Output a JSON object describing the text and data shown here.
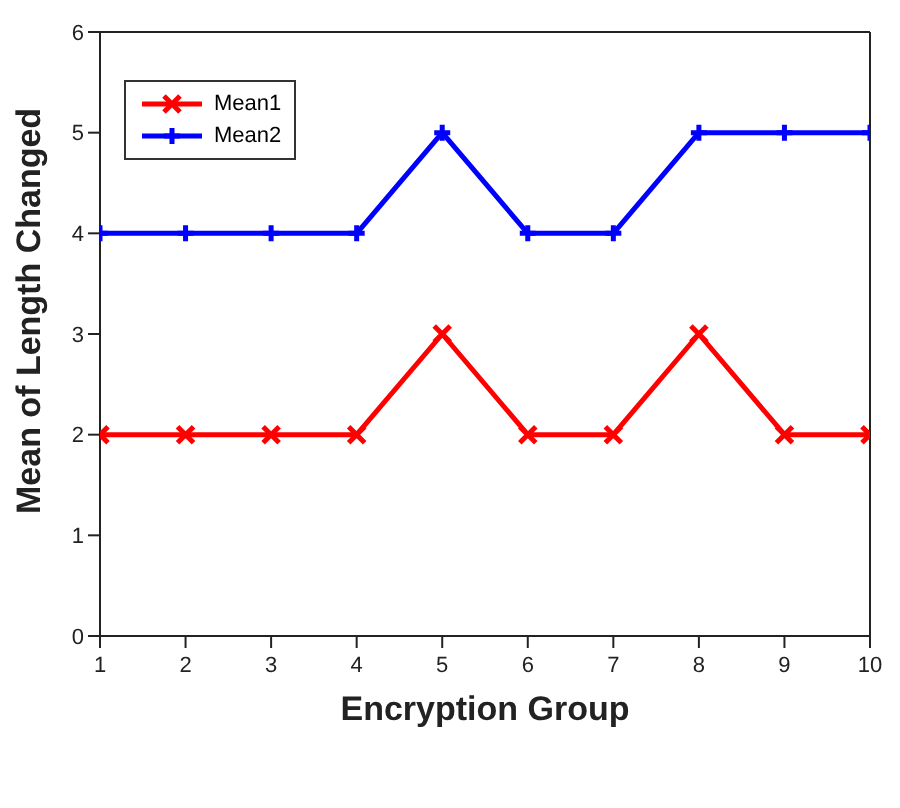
{
  "chart_data": {
    "type": "line",
    "xlabel": "Encryption Group",
    "ylabel": "Mean of Length Changed",
    "x": [
      1,
      2,
      3,
      4,
      5,
      6,
      7,
      8,
      9,
      10
    ],
    "series": [
      {
        "name": "Mean1",
        "color": "#ff0000",
        "values": [
          2,
          2,
          2,
          2,
          3,
          2,
          2,
          3,
          2,
          2
        ],
        "marker": "cross"
      },
      {
        "name": "Mean2",
        "color": "#0000ff",
        "values": [
          4,
          4,
          4,
          4,
          5,
          4,
          4,
          5,
          5,
          5
        ],
        "marker": "plus"
      }
    ],
    "xlim": [
      1,
      10
    ],
    "xticks": [
      1,
      2,
      3,
      4,
      5,
      6,
      7,
      8,
      9,
      10
    ],
    "ylim": [
      0,
      6
    ],
    "yticks": [
      0,
      1,
      2,
      3,
      4,
      5,
      6
    ],
    "grid": false,
    "legend": "top left",
    "line_style": "solid"
  }
}
